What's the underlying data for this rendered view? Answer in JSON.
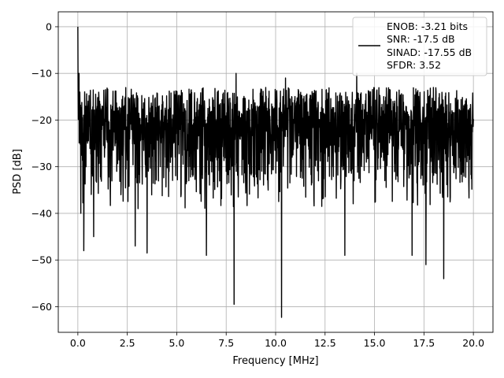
{
  "chart_data": {
    "type": "line",
    "xlabel": "Frequency [MHz]",
    "ylabel": "PSD [dB]",
    "xlim": [
      -0.99,
      20.99
    ],
    "ylim": [
      -65.5,
      3.2
    ],
    "xticks": [
      0.0,
      2.5,
      5.0,
      7.5,
      10.0,
      12.5,
      15.0,
      17.5,
      20.0
    ],
    "xtick_labels": [
      "0.0",
      "2.5",
      "5.0",
      "7.5",
      "10.0",
      "12.5",
      "15.0",
      "17.5",
      "20.0"
    ],
    "yticks": [
      0,
      -10,
      -20,
      -30,
      -40,
      -50,
      -60
    ],
    "ytick_labels": [
      "0",
      "−10",
      "−20",
      "−30",
      "−40",
      "−50",
      "−60"
    ],
    "grid": true,
    "legend_position": "top-right",
    "series": [
      {
        "color": "#000000",
        "noise_floor_band_db": [
          -34,
          -13
        ],
        "peaks": [
          {
            "x": 0.0,
            "y": 0.0
          },
          {
            "x": 0.06,
            "y": -10.0
          },
          {
            "x": 0.1,
            "y": -14.0
          }
        ],
        "dips": [
          {
            "x": 0.15,
            "y": -40.0
          },
          {
            "x": 0.3,
            "y": -48.0
          },
          {
            "x": 0.8,
            "y": -45.0
          },
          {
            "x": 2.9,
            "y": -47.0
          },
          {
            "x": 3.5,
            "y": -48.5
          },
          {
            "x": 6.5,
            "y": -49.0
          },
          {
            "x": 7.9,
            "y": -59.5
          },
          {
            "x": 10.3,
            "y": -62.3
          },
          {
            "x": 13.5,
            "y": -49.0
          },
          {
            "x": 16.9,
            "y": -49.0
          },
          {
            "x": 17.6,
            "y": -51.0
          },
          {
            "x": 18.5,
            "y": -54.0
          }
        ],
        "spurs_above_floor": [
          {
            "x": 8.0,
            "y": -10.0
          },
          {
            "x": 14.1,
            "y": -10.0
          },
          {
            "x": 10.5,
            "y": -11.0
          }
        ]
      }
    ],
    "legend_lines": [
      "ENOB: -3.21 bits",
      "SNR: -17.5 dB",
      "SINAD: -17.55 dB",
      "SFDR: 3.52"
    ]
  }
}
